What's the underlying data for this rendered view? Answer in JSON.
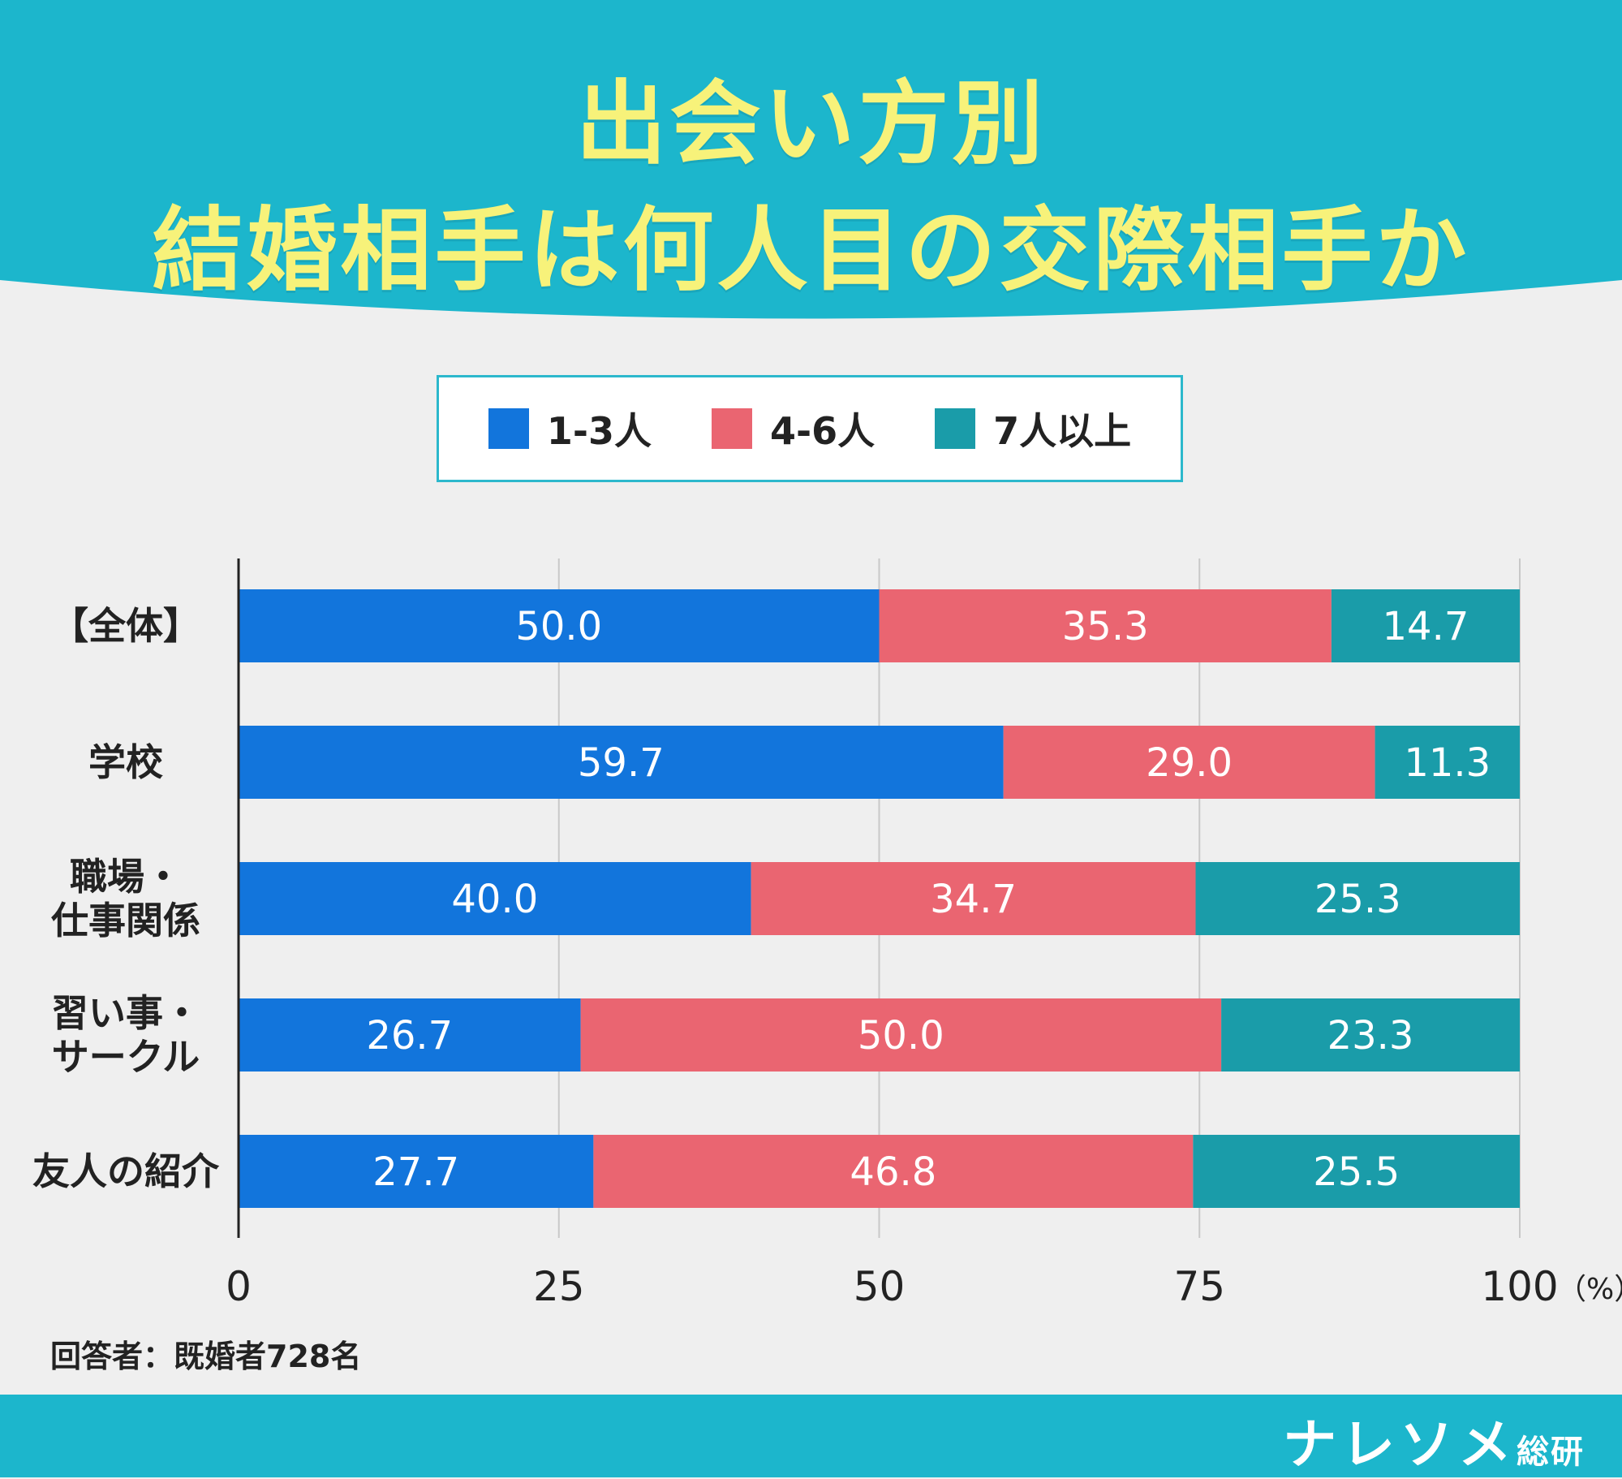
{
  "title": {
    "line1": "出会い方別",
    "line2": "結婚相手は何人目の交際相手か"
  },
  "note": "回答者：既婚者728名",
  "brand": {
    "name": "ナレソメ",
    "sub": "総研"
  },
  "colors": {
    "header_bg": "#1cb6cc",
    "title_text": "#f7f27a",
    "series_1": "#1275dc",
    "series_2": "#ea6571",
    "series_3": "#1a9ca9"
  },
  "chart_data": {
    "type": "bar",
    "orientation": "horizontal",
    "stacked": true,
    "categories": [
      "【全体】",
      "学校",
      "職場・\n仕事関係",
      "習い事・\nサークル",
      "友人の紹介"
    ],
    "series": [
      {
        "name": "1-3人",
        "values": [
          50.0,
          59.7,
          40.0,
          26.7,
          27.7
        ]
      },
      {
        "name": "4-6人",
        "values": [
          35.3,
          29.0,
          34.7,
          50.0,
          46.8
        ]
      },
      {
        "name": "7人以上",
        "values": [
          14.7,
          11.3,
          25.3,
          23.3,
          25.5
        ]
      }
    ],
    "xlim": [
      0,
      100
    ],
    "xticks": [
      "0",
      "25",
      "50",
      "75",
      "100"
    ],
    "xunit": "（%）",
    "grid": true,
    "legend_position": "top"
  }
}
